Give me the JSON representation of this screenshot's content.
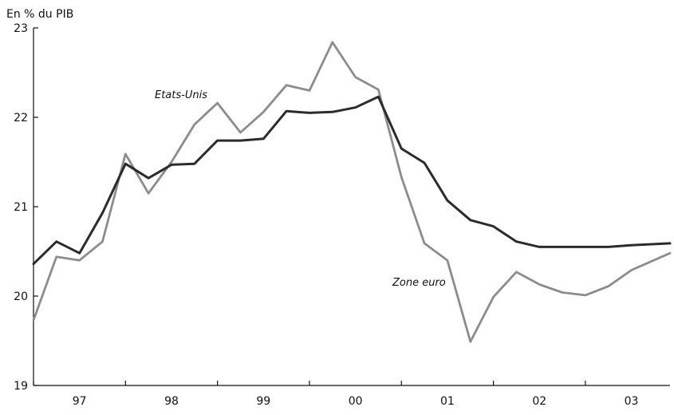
{
  "chart_data": {
    "type": "line",
    "unit_label": "En % du PIB",
    "x_tick_labels": [
      "97",
      "98",
      "99",
      "00",
      "01",
      "02",
      "03"
    ],
    "y_tick_labels": [
      "23",
      "22",
      "21",
      "20",
      "19"
    ],
    "y_ticks": [
      23,
      22,
      21,
      20,
      19
    ],
    "ylim": [
      19,
      23
    ],
    "xlim": [
      1997.0,
      2003.92
    ],
    "grid": false,
    "legend": "none",
    "series": [
      {
        "name": "Etats-Unis",
        "color": "#2b2b2b",
        "x": [
          1997.0,
          1997.25,
          1997.5,
          1997.75,
          1998.0,
          1998.25,
          1998.5,
          1998.75,
          1999.0,
          1999.25,
          1999.5,
          1999.75,
          2000.0,
          2000.25,
          2000.5,
          2000.75,
          2001.0,
          2001.25,
          2001.5,
          2001.75,
          2002.0,
          2002.25,
          2002.5,
          2002.75,
          2003.0,
          2003.25,
          2003.5,
          2003.92
        ],
        "values": [
          20.36,
          20.61,
          20.48,
          20.93,
          21.48,
          21.32,
          21.47,
          21.48,
          21.74,
          21.74,
          21.76,
          22.07,
          22.05,
          22.06,
          22.11,
          22.23,
          21.65,
          21.49,
          21.07,
          20.85,
          20.78,
          20.61,
          20.55,
          20.55,
          20.55,
          20.55,
          20.57,
          20.59
        ]
      },
      {
        "name": "Zone euro",
        "color": "#8c8c8c",
        "x": [
          1997.0,
          1997.25,
          1997.5,
          1997.75,
          1998.0,
          1998.25,
          1998.5,
          1998.75,
          1999.0,
          1999.25,
          1999.5,
          1999.75,
          2000.0,
          2000.25,
          2000.5,
          2000.75,
          2001.0,
          2001.25,
          2001.5,
          2001.75,
          2002.0,
          2002.25,
          2002.5,
          2002.75,
          2003.0,
          2003.25,
          2003.5,
          2003.92
        ],
        "values": [
          19.73,
          20.44,
          20.4,
          20.61,
          21.59,
          21.15,
          21.5,
          21.92,
          22.16,
          21.83,
          22.06,
          22.36,
          22.3,
          22.84,
          22.45,
          22.31,
          21.33,
          20.59,
          20.4,
          19.49,
          19.99,
          20.27,
          20.13,
          20.04,
          20.01,
          20.11,
          20.29,
          20.48
        ]
      }
    ],
    "annotations": {
      "etats_unis": "Etats-Unis",
      "zone_euro": "Zone euro"
    }
  }
}
